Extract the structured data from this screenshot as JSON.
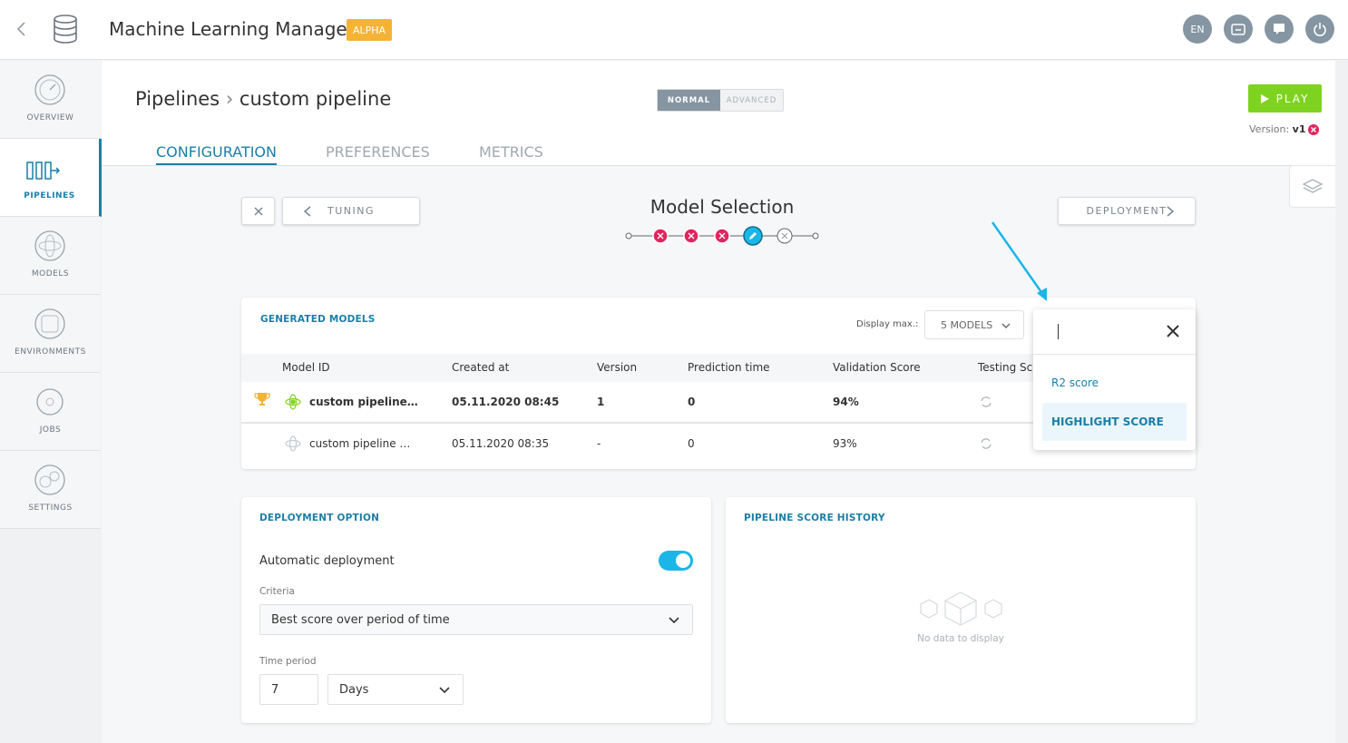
{
  "header": {
    "title": "Machine Learning Manager",
    "badge": "ALPHA",
    "language": "EN"
  },
  "sidebar": {
    "items": [
      "OVERVIEW",
      "PIPELINES",
      "MODELS",
      "ENVIRONMENTS",
      "JOBS",
      "SETTINGS"
    ]
  },
  "breadcrumb": [
    "Pipelines",
    "custom pipeline"
  ],
  "mode_toggle": [
    "NORMAL",
    "ADVANCED"
  ],
  "play": "PLAY",
  "version": {
    "label": "Version:",
    "value": "v1"
  },
  "tabs": [
    "CONFIGURATION",
    "PREFERENCES",
    "METRICS"
  ],
  "wizard": {
    "back": "TUNING",
    "title": "Model Selection",
    "next": "DEPLOYMENT"
  },
  "generated_models": {
    "title": "GENERATED MODELS",
    "display_max_label": "Display max.:",
    "display_max": "5 MODELS",
    "columns": [
      "Model ID",
      "Created at",
      "Version",
      "Prediction time",
      "Validation Score",
      "Testing Score"
    ],
    "rows": [
      [
        "custom pipeline…",
        "05.11.2020 08:45",
        "1",
        "0",
        "94%"
      ],
      [
        "custom pipeline …",
        "05.11.2020 08:35",
        "-",
        "0",
        "93%"
      ]
    ]
  },
  "dropdown": {
    "options": [
      "R2 score",
      "HIGHLIGHT SCORE"
    ]
  },
  "deployment_option": {
    "title": "DEPLOYMENT OPTION",
    "automatic": "Automatic deployment",
    "criteria_label": "Criteria",
    "criteria": "Best score over period of time",
    "period_label": "Time period",
    "period_value": "7",
    "period_unit": "Days"
  },
  "score_history": {
    "title": "PIPELINE SCORE HISTORY",
    "empty": "No data to display"
  }
}
